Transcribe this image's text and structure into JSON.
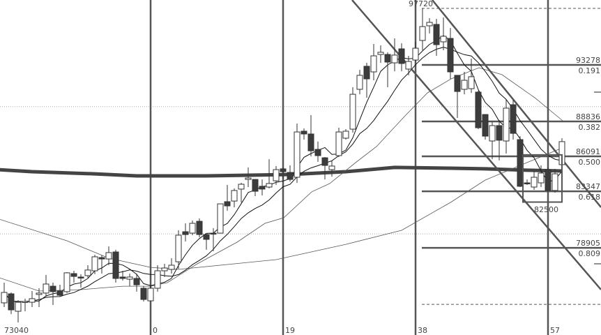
{
  "chart_data": {
    "type": "candlestick",
    "first_index": -21,
    "candles_ohlc": [
      [
        74580,
        76170,
        74250,
        75400
      ],
      [
        75290,
        75400,
        73700,
        74030
      ],
      [
        73920,
        74800,
        73040,
        74630
      ],
      [
        74630,
        74910,
        73920,
        74690
      ],
      [
        74630,
        75510,
        74250,
        74910
      ],
      [
        75240,
        75730,
        74250,
        75350
      ],
      [
        75350,
        76770,
        75070,
        76060
      ],
      [
        75890,
        76170,
        74410,
        75460
      ],
      [
        75510,
        76000,
        75070,
        75180
      ],
      [
        75460,
        76990,
        75350,
        76940
      ],
      [
        76880,
        77100,
        76170,
        76660
      ],
      [
        76610,
        76830,
        75780,
        76550
      ],
      [
        76720,
        77540,
        76550,
        77160
      ],
      [
        77100,
        78360,
        76830,
        78200
      ],
      [
        78140,
        78310,
        76880,
        78030
      ],
      [
        78030,
        79020,
        77540,
        78530
      ],
      [
        78580,
        78750,
        76170,
        76500
      ],
      [
        76610,
        77100,
        76330,
        76500
      ],
      [
        76440,
        76880,
        75890,
        76610
      ],
      [
        76500,
        76880,
        75460,
        76000
      ],
      [
        75730,
        75890,
        74690,
        74850
      ],
      [
        74740,
        75890,
        74690,
        75730
      ],
      [
        75730,
        77540,
        75460,
        77100
      ],
      [
        77100,
        77650,
        76610,
        77320
      ],
      [
        77210,
        78090,
        76880,
        77540
      ],
      [
        77810,
        80280,
        77260,
        79900
      ],
      [
        80170,
        80830,
        79400,
        79950
      ],
      [
        80060,
        81050,
        79900,
        80830
      ],
      [
        80990,
        81210,
        79730,
        79950
      ],
      [
        79950,
        80060,
        78750,
        79570
      ],
      [
        80060,
        80450,
        78640,
        80010
      ],
      [
        80060,
        82360,
        80060,
        82360
      ],
      [
        82530,
        83850,
        81820,
        82200
      ],
      [
        82580,
        83570,
        82090,
        83410
      ],
      [
        83520,
        84010,
        82470,
        83900
      ],
      [
        84280,
        85220,
        83680,
        84390
      ],
      [
        84280,
        84280,
        82970,
        83350
      ],
      [
        83740,
        84280,
        83020,
        83520
      ],
      [
        83680,
        85870,
        83570,
        83960
      ],
      [
        84170,
        85330,
        83850,
        85050
      ],
      [
        85110,
        85220,
        84340,
        84890
      ],
      [
        84830,
        85380,
        84120,
        84280
      ],
      [
        84450,
        88670,
        84010,
        88010
      ],
      [
        88070,
        88290,
        87410,
        87850
      ],
      [
        87850,
        89330,
        86090,
        86530
      ],
      [
        86640,
        87250,
        85660,
        86150
      ],
      [
        85980,
        86040,
        84280,
        85380
      ],
      [
        85050,
        85770,
        84500,
        85330
      ],
      [
        86150,
        88340,
        86040,
        88010
      ],
      [
        87520,
        88230,
        87410,
        88070
      ],
      [
        88230,
        91520,
        87960,
        90970
      ],
      [
        91360,
        92890,
        90970,
        92460
      ],
      [
        93170,
        93440,
        90700,
        92180
      ],
      [
        92730,
        94920,
        92070,
        93990
      ],
      [
        94100,
        94810,
        93440,
        94270
      ],
      [
        94100,
        94270,
        91520,
        93500
      ],
      [
        93440,
        95360,
        92780,
        94050
      ],
      [
        94540,
        94980,
        92780,
        93390
      ],
      [
        92950,
        93990,
        92460,
        93550
      ],
      [
        93660,
        95090,
        93550,
        94590
      ],
      [
        95200,
        97720,
        94430,
        96290
      ],
      [
        96350,
        96950,
        95750,
        96620
      ],
      [
        96460,
        96900,
        93990,
        94870
      ],
      [
        95090,
        97010,
        94430,
        95530
      ],
      [
        95360,
        96180,
        92180,
        92730
      ],
      [
        92460,
        92460,
        89110,
        91190
      ],
      [
        91360,
        92730,
        90970,
        92070
      ],
      [
        91410,
        93770,
        91080,
        92350
      ],
      [
        91140,
        91250,
        88230,
        88340
      ],
      [
        89380,
        89380,
        87410,
        87680
      ],
      [
        87300,
        88780,
        85870,
        88510
      ],
      [
        88510,
        88950,
        85770,
        87360
      ],
      [
        87300,
        90540,
        86310,
        89880
      ],
      [
        90150,
        90540,
        87410,
        87900
      ],
      [
        87410,
        87680,
        83680,
        83740
      ],
      [
        84010,
        84280,
        83850,
        83960
      ],
      [
        83680,
        84940,
        83460,
        84450
      ],
      [
        84010,
        85380,
        83680,
        84780
      ],
      [
        85050,
        85220,
        83300,
        83410
      ],
      [
        83410,
        85110,
        83240,
        84720
      ],
      [
        85440,
        87520,
        85220,
        87250
      ]
    ],
    "moving_average_periods": [
      5,
      10
    ],
    "overlay_lines": [
      {
        "style": "thick",
        "points": [
          [
            -22,
            85050
          ],
          [
            -17,
            84890
          ],
          [
            -8,
            84720
          ],
          [
            -2,
            84560
          ],
          [
            8,
            84560
          ],
          [
            20,
            84670
          ],
          [
            28,
            84890
          ],
          [
            35,
            85220
          ],
          [
            43,
            85160
          ],
          [
            48,
            85110
          ],
          [
            54,
            85000
          ],
          [
            59,
            84940
          ]
        ]
      },
      {
        "style": "thin",
        "points": [
          [
            -22,
            81210
          ],
          [
            -12,
            79460
          ],
          [
            -6,
            78090
          ],
          [
            0,
            77370
          ],
          [
            4,
            77210
          ],
          [
            12,
            77650
          ],
          [
            18,
            77980
          ],
          [
            28,
            79180
          ],
          [
            36,
            80280
          ],
          [
            43,
            82470
          ],
          [
            48,
            84230
          ],
          [
            59,
            86750
          ]
        ]
      },
      {
        "style": "thin",
        "points": [
          [
            -22,
            76610
          ],
          [
            -16,
            75510
          ],
          [
            -10,
            75620
          ],
          [
            -4,
            75890
          ],
          [
            0,
            75890
          ],
          [
            2.4,
            76170
          ],
          [
            6.7,
            77650
          ],
          [
            12.4,
            79350
          ],
          [
            16.4,
            80830
          ],
          [
            19.1,
            81270
          ],
          [
            23.1,
            83300
          ],
          [
            25.7,
            83960
          ],
          [
            29.4,
            85600
          ],
          [
            32.4,
            86860
          ],
          [
            36.4,
            89220
          ],
          [
            39.7,
            91080
          ],
          [
            43.1,
            92180
          ],
          [
            47.1,
            93060
          ],
          [
            50.4,
            92510
          ],
          [
            55.1,
            90700
          ],
          [
            59.1,
            88890
          ]
        ]
      }
    ],
    "trendlines": [
      [
        [
          28.9,
          98378
        ],
        [
          64.6,
          75620
        ]
      ],
      [
        [
          40.4,
          98378
        ],
        [
          64.6,
          82090
        ]
      ]
    ],
    "grid_prices": [
      80000,
      90000
    ],
    "vertical_markers": [
      0,
      19,
      38,
      57
    ],
    "x_labels": [
      {
        "index": -21,
        "text": "73040"
      },
      {
        "index": 0,
        "text": "0"
      },
      {
        "index": 19,
        "text": "19"
      },
      {
        "index": 38,
        "text": "38"
      },
      {
        "index": 57,
        "text": "57"
      }
    ],
    "high_label": "97720",
    "fibonacci": {
      "high": 97720,
      "low": 74462,
      "levels": [
        {
          "price": 93278,
          "price_label": "93278",
          "ratio_label": "0.191"
        },
        {
          "price": 88836,
          "price_label": "88836",
          "ratio_label": "0.382"
        },
        {
          "price": 86091,
          "price_label": "86091",
          "ratio_label": "0.500"
        },
        {
          "price": 83347,
          "price_label": "83347",
          "ratio_label": "0.618"
        },
        {
          "price": 78905,
          "price_label": "78905",
          "ratio_label": "0.809"
        }
      ]
    },
    "box": {
      "from_index": 54,
      "to_index": 59,
      "top": 86210,
      "bottom": 82500,
      "label": "82500"
    },
    "colors": {
      "down": "#3c3c3c",
      "up": "#ffffff",
      "outline": "#333333",
      "lines": "#555555"
    }
  }
}
